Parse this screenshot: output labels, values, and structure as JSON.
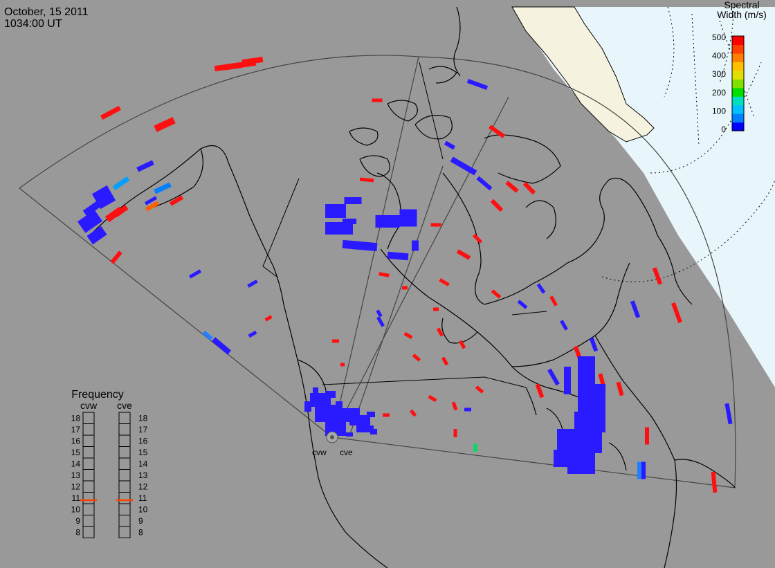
{
  "header": {
    "date": "October, 15 2011",
    "time": "1034:00 UT"
  },
  "colorbar": {
    "title_line1": "Spectral",
    "title_line2": "Width (m/s)",
    "ticks": [
      "500",
      "400",
      "300",
      "200",
      "100",
      "0"
    ],
    "scale_colors": [
      "#0000ff",
      "#0080ff",
      "#00c0ff",
      "#00e0c0",
      "#00e000",
      "#80e000",
      "#e0e000",
      "#ffc000",
      "#ff8000",
      "#ff4000",
      "#ff0000"
    ]
  },
  "stations": {
    "west": "cvw",
    "east": "cve"
  },
  "frequency": {
    "title": "Frequency",
    "label_west": "cvw",
    "label_east": "cve",
    "ticks": [
      "18",
      "17",
      "16",
      "15",
      "14",
      "13",
      "12",
      "11",
      "10",
      "9",
      "8"
    ],
    "value_west_mhz": 10.8,
    "value_east_mhz": 10.8,
    "marker_color": "#ff4000"
  },
  "colors": {
    "background": "#999999",
    "land_outline": "#000000",
    "sunlit_region": "#e8f6fb",
    "greenland_ice": "#f5f2e0",
    "low_width": "#2a1aff",
    "high_width": "#ff1010"
  }
}
